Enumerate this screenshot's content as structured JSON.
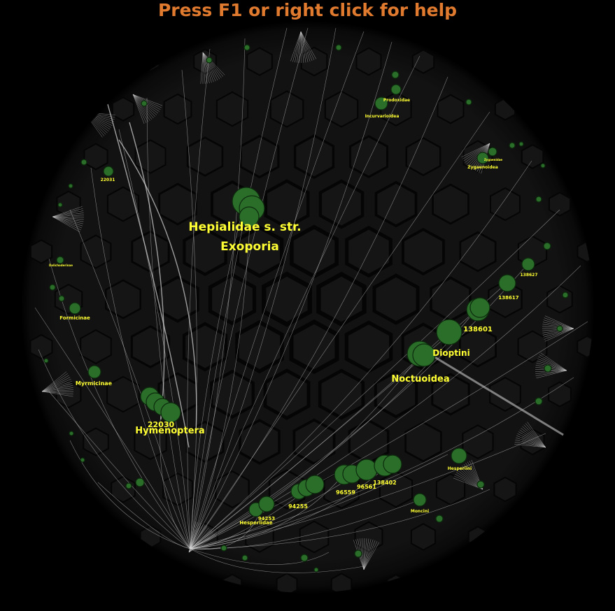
{
  "header": {
    "help_text": "Press F1 or right click for help",
    "help_color": "#e07a2e"
  },
  "theme": {
    "background": "#000000",
    "disc": "#111111",
    "cell_border": "#050505",
    "node_fill": "#2a6e2a",
    "node_stroke": "#0d2a0d",
    "edge": "#d8d8d8",
    "label": "#ffff33"
  },
  "labels": {
    "hepialidae": "Hepialidae s. str.",
    "exoporia": "Exoporia",
    "noctuoidea": "Noctuoidea",
    "dioptini": "Dioptini",
    "n138601": "138601",
    "n138617": "138617",
    "n138627": "138627",
    "hymenoptera": "Hymenoptera",
    "n22030": "22030",
    "myrmicinae": "Myrmicinae",
    "formicinae": "Formicinae",
    "n22031": "22031",
    "hesperiidae": "Hesperiidae",
    "n94253": "94253",
    "n94255": "94255",
    "n96559": "96559",
    "n96561": "96561",
    "n138402": "138402",
    "hesperiini": "Hesperiini",
    "moncini": "Moncini",
    "incurvarioidea": "Incurvarioidea",
    "prodoxidae": "Prodoxidae",
    "zygaenoidea": "Zygaenoidea",
    "zygaenidae": "Zygaenidae",
    "dolichoderinae": "Dolichoderinae"
  }
}
